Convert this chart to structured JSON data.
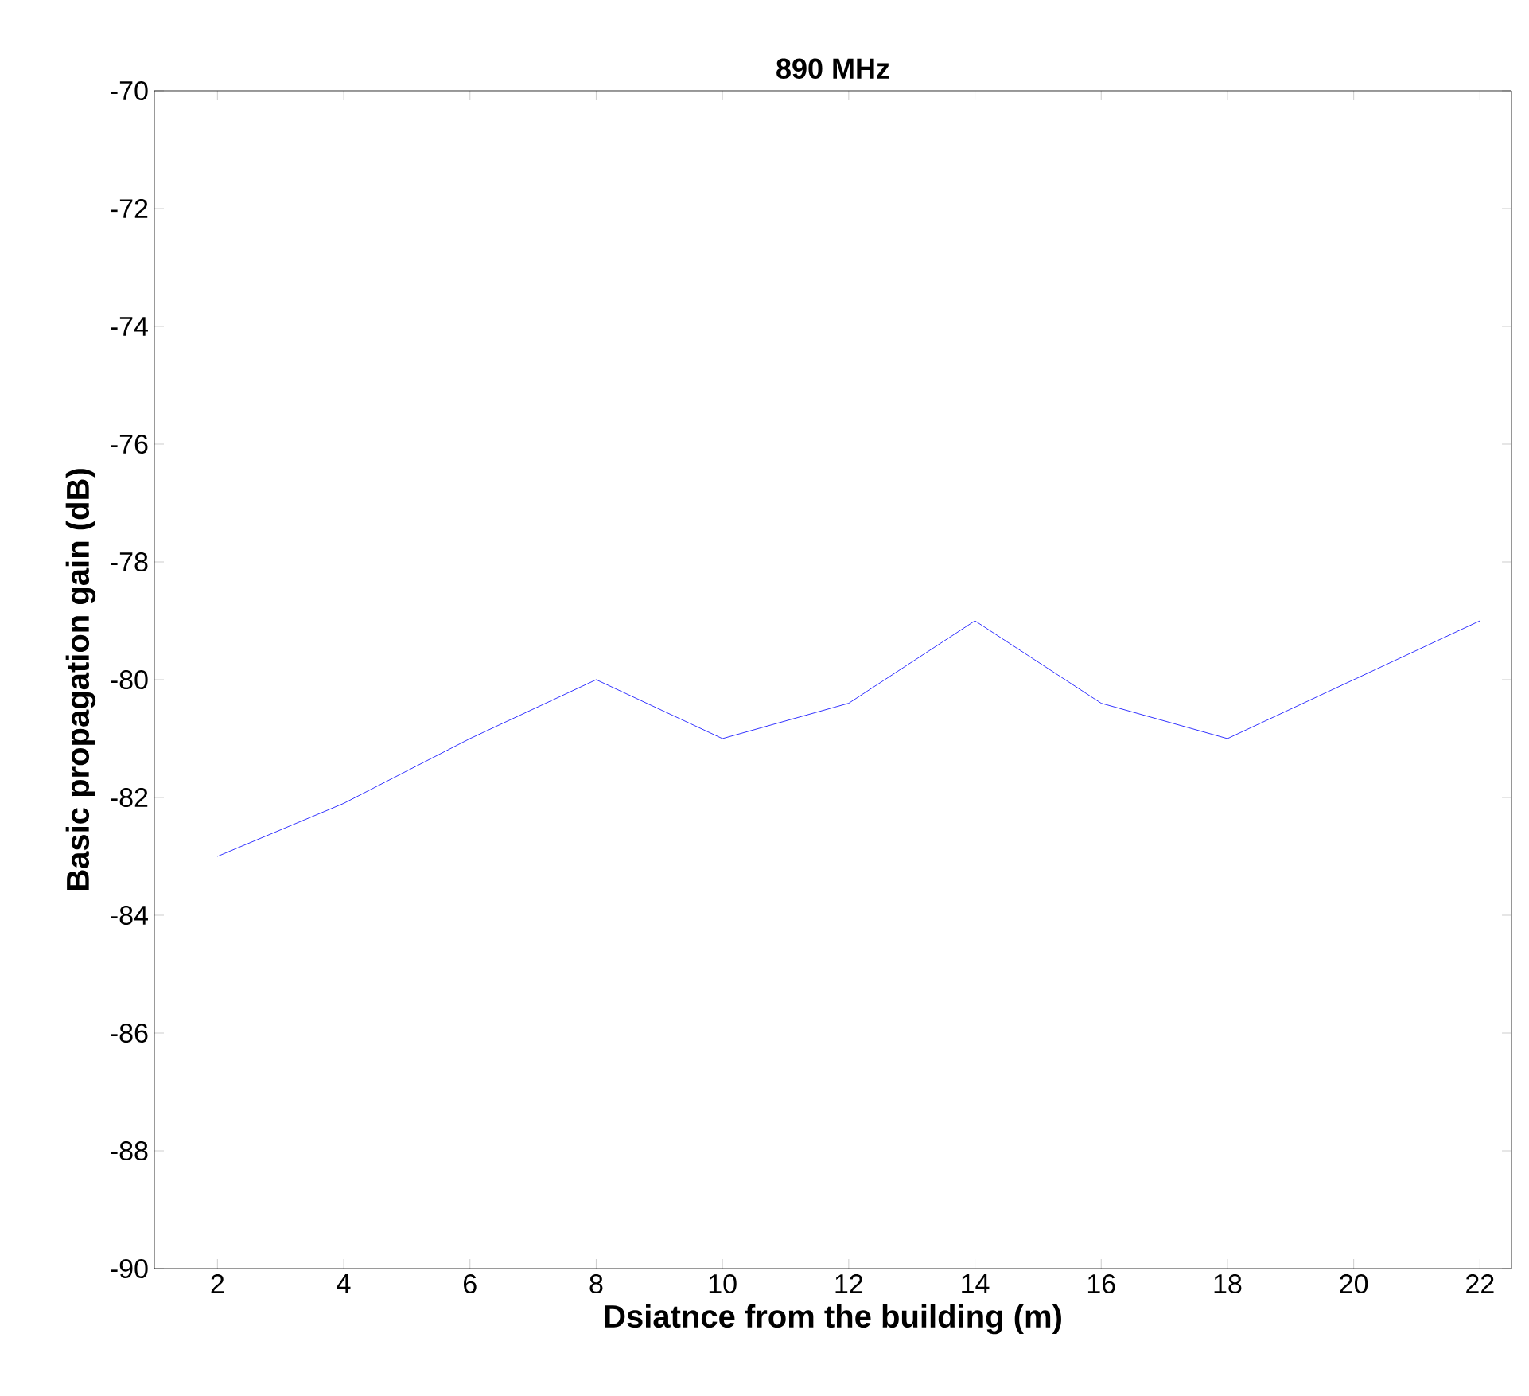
{
  "chart_data": {
    "type": "line",
    "title": "890 MHz",
    "xlabel": "Dsiatnce from the building  (m)",
    "ylabel": "Basic propagation gain (dB)",
    "x": [
      2,
      4,
      6,
      8,
      10,
      12,
      14,
      16,
      18,
      20,
      22
    ],
    "series": [
      {
        "color": "#0000ff",
        "values": [
          -83,
          -82.1,
          -81,
          -80,
          -81,
          -80.4,
          -79,
          -80.4,
          -81,
          -80,
          -79
        ]
      }
    ],
    "xlim": [
      1,
      22.5
    ],
    "ylim": [
      -90,
      -70
    ],
    "xticks": [
      2,
      4,
      6,
      8,
      10,
      12,
      14,
      16,
      18,
      20,
      22
    ],
    "yticks": [
      -90,
      -88,
      -86,
      -84,
      -82,
      -80,
      -78,
      -76,
      -74,
      -72,
      -70
    ],
    "grid": false,
    "line_style": "solid",
    "marker": "none"
  }
}
